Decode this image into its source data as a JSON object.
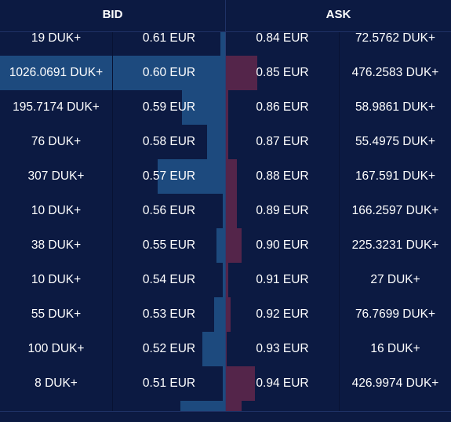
{
  "header": {
    "bid_label": "BID",
    "ask_label": "ASK"
  },
  "colors": {
    "background": "#0c1a42",
    "bid_bar": "#1d4a7e",
    "ask_bar": "#54254a"
  },
  "rows": [
    {
      "bid_amount": "19 DUK+",
      "bid_price": "0.61 EUR",
      "ask_price": "0.84 EUR",
      "ask_amount": "72.5762 DUK+",
      "bid_depth": 0.02,
      "ask_depth": 0.0
    },
    {
      "bid_amount": "1026.0691 DUK+",
      "bid_price": "0.60 EUR",
      "ask_price": "0.85 EUR",
      "ask_amount": "476.2583 DUK+",
      "bid_depth": 1.0,
      "ask_depth": 0.14
    },
    {
      "bid_amount": "195.7174 DUK+",
      "bid_price": "0.59 EUR",
      "ask_price": "0.86 EUR",
      "ask_amount": "58.9861 DUK+",
      "bid_depth": 0.19,
      "ask_depth": 0.01
    },
    {
      "bid_amount": "76 DUK+",
      "bid_price": "0.58 EUR",
      "ask_price": "0.87 EUR",
      "ask_amount": "55.4975 DUK+",
      "bid_depth": 0.08,
      "ask_depth": 0.01
    },
    {
      "bid_amount": "307 DUK+",
      "bid_price": "0.57 EUR",
      "ask_price": "0.88 EUR",
      "ask_amount": "167.591 DUK+",
      "bid_depth": 0.3,
      "ask_depth": 0.05
    },
    {
      "bid_amount": "10 DUK+",
      "bid_price": "0.56 EUR",
      "ask_price": "0.89 EUR",
      "ask_amount": "166.2597 DUK+",
      "bid_depth": 0.01,
      "ask_depth": 0.05
    },
    {
      "bid_amount": "38 DUK+",
      "bid_price": "0.55 EUR",
      "ask_price": "0.90 EUR",
      "ask_amount": "225.3231 DUK+",
      "bid_depth": 0.04,
      "ask_depth": 0.07
    },
    {
      "bid_amount": "10 DUK+",
      "bid_price": "0.54 EUR",
      "ask_price": "0.91 EUR",
      "ask_amount": "27 DUK+",
      "bid_depth": 0.01,
      "ask_depth": 0.01
    },
    {
      "bid_amount": "55 DUK+",
      "bid_price": "0.53 EUR",
      "ask_price": "0.92 EUR",
      "ask_amount": "76.7699 DUK+",
      "bid_depth": 0.05,
      "ask_depth": 0.02
    },
    {
      "bid_amount": "100 DUK+",
      "bid_price": "0.52 EUR",
      "ask_price": "0.93 EUR",
      "ask_amount": "16 DUK+",
      "bid_depth": 0.1,
      "ask_depth": 0.005
    },
    {
      "bid_amount": "8 DUK+",
      "bid_price": "0.51 EUR",
      "ask_price": "0.94 EUR",
      "ask_amount": "426.9974 DUK+",
      "bid_depth": 0.01,
      "ask_depth": 0.13
    },
    {
      "bid_amount": "",
      "bid_price": "",
      "ask_price": "",
      "ask_amount": "",
      "bid_depth": 0.2,
      "ask_depth": 0.07
    }
  ]
}
